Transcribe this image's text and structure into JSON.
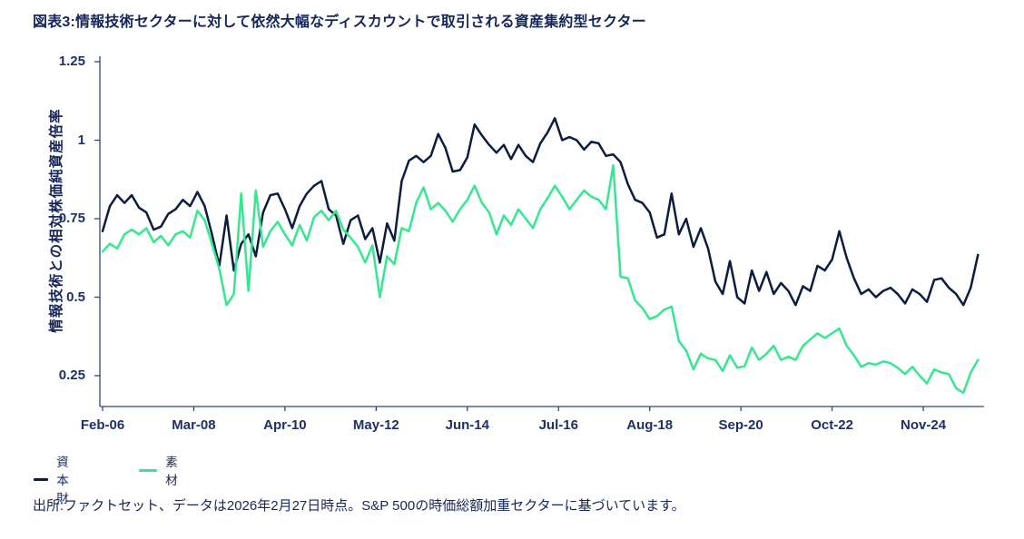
{
  "title": "図表3:情報技術セクターに対して依然大幅なディスカウントで取引される資産集約型セクター",
  "footer": "出所:ファクトセット、データは2026年2月27日時点。S&P 500の時価総額加重セクターに基づいています。",
  "colors": {
    "navy_series": "#0B1D3F",
    "green_series": "#35E88F",
    "axis_line": "#36457C",
    "text_navy": "#15265B",
    "background": "#FFFFFF"
  },
  "legend": {
    "items": [
      {
        "label": "資本財",
        "color": "#0B1D3F"
      },
      {
        "label": "素材",
        "color": "#35E88F"
      }
    ]
  },
  "chart_data": {
    "type": "line",
    "title": "図表3:情報技術セクターに対して依然大幅なディスカウントで取引される資産集約型セクター",
    "xlabel": "",
    "ylabel": "情報技術との相対株価純資産倍率",
    "ylim": [
      0.15,
      1.25
    ],
    "grid": false,
    "legend_position": "bottom-left",
    "x_unit": "months since Feb-2006, monthly data through Feb-2026",
    "yticks": {
      "values": [
        1.25,
        1.0,
        0.75,
        0.5,
        0.25
      ],
      "labels": [
        "1.25",
        "1",
        "0.75",
        "0.5",
        "0.25"
      ]
    },
    "xticks": {
      "months": [
        0,
        25,
        50,
        75,
        100,
        125,
        150,
        175,
        200,
        225
      ],
      "labels": [
        "Feb-06",
        "Mar-08",
        "Apr-10",
        "May-12",
        "Jun-14",
        "Jul-16",
        "Aug-18",
        "Sep-20",
        "Oct-22",
        "Nov-24"
      ]
    },
    "months": [
      0,
      2,
      4,
      6,
      8,
      10,
      12,
      14,
      16,
      18,
      20,
      22,
      24,
      26,
      28,
      30,
      32,
      34,
      36,
      38,
      40,
      42,
      44,
      46,
      48,
      50,
      52,
      54,
      56,
      58,
      60,
      62,
      64,
      66,
      68,
      70,
      72,
      74,
      76,
      78,
      80,
      82,
      84,
      86,
      88,
      90,
      92,
      94,
      96,
      98,
      100,
      102,
      104,
      106,
      108,
      110,
      112,
      114,
      116,
      118,
      120,
      122,
      124,
      126,
      128,
      130,
      132,
      134,
      136,
      138,
      140,
      142,
      144,
      146,
      148,
      150,
      152,
      154,
      156,
      158,
      160,
      162,
      164,
      166,
      168,
      170,
      172,
      174,
      176,
      178,
      180,
      182,
      184,
      186,
      188,
      190,
      192,
      194,
      196,
      198,
      200,
      202,
      204,
      206,
      208,
      210,
      212,
      214,
      216,
      218,
      220,
      222,
      224,
      226,
      228,
      230,
      232,
      234,
      236,
      238,
      240
    ],
    "series": [
      {
        "name": "資本財",
        "color": "#0B1D3F",
        "values": [
          0.71,
          0.79,
          0.825,
          0.8,
          0.825,
          0.785,
          0.77,
          0.715,
          0.725,
          0.765,
          0.78,
          0.81,
          0.79,
          0.835,
          0.79,
          0.7,
          0.6,
          0.76,
          0.585,
          0.67,
          0.7,
          0.63,
          0.77,
          0.825,
          0.83,
          0.78,
          0.72,
          0.79,
          0.83,
          0.855,
          0.87,
          0.78,
          0.76,
          0.67,
          0.745,
          0.76,
          0.685,
          0.72,
          0.61,
          0.735,
          0.68,
          0.87,
          0.935,
          0.95,
          0.93,
          0.95,
          1.02,
          0.975,
          0.9,
          0.905,
          0.945,
          1.05,
          1.015,
          0.985,
          0.96,
          0.985,
          0.94,
          0.985,
          0.95,
          0.93,
          0.99,
          1.025,
          1.07,
          1.0,
          1.01,
          1.0,
          0.97,
          0.995,
          0.99,
          0.95,
          0.955,
          0.93,
          0.86,
          0.81,
          0.8,
          0.77,
          0.69,
          0.7,
          0.83,
          0.7,
          0.75,
          0.66,
          0.72,
          0.655,
          0.55,
          0.51,
          0.615,
          0.5,
          0.48,
          0.585,
          0.52,
          0.58,
          0.51,
          0.545,
          0.52,
          0.475,
          0.535,
          0.52,
          0.6,
          0.585,
          0.62,
          0.71,
          0.625,
          0.56,
          0.51,
          0.525,
          0.5,
          0.52,
          0.53,
          0.51,
          0.48,
          0.525,
          0.51,
          0.485,
          0.555,
          0.56,
          0.53,
          0.51,
          0.475,
          0.53,
          0.635
        ]
      },
      {
        "name": "素材",
        "color": "#35E88F",
        "values": [
          0.645,
          0.67,
          0.655,
          0.7,
          0.715,
          0.7,
          0.72,
          0.675,
          0.695,
          0.665,
          0.7,
          0.71,
          0.69,
          0.775,
          0.745,
          0.67,
          0.59,
          0.475,
          0.51,
          0.83,
          0.52,
          0.84,
          0.66,
          0.71,
          0.74,
          0.7,
          0.665,
          0.73,
          0.68,
          0.755,
          0.775,
          0.745,
          0.775,
          0.715,
          0.69,
          0.66,
          0.61,
          0.665,
          0.5,
          0.63,
          0.605,
          0.72,
          0.71,
          0.8,
          0.85,
          0.78,
          0.8,
          0.775,
          0.74,
          0.78,
          0.81,
          0.855,
          0.8,
          0.77,
          0.7,
          0.76,
          0.73,
          0.78,
          0.75,
          0.72,
          0.78,
          0.815,
          0.855,
          0.82,
          0.78,
          0.81,
          0.84,
          0.82,
          0.81,
          0.78,
          0.92,
          0.565,
          0.56,
          0.49,
          0.465,
          0.43,
          0.44,
          0.46,
          0.47,
          0.36,
          0.33,
          0.27,
          0.32,
          0.305,
          0.3,
          0.265,
          0.315,
          0.275,
          0.28,
          0.34,
          0.3,
          0.32,
          0.345,
          0.3,
          0.31,
          0.3,
          0.345,
          0.365,
          0.385,
          0.37,
          0.385,
          0.4,
          0.345,
          0.315,
          0.278,
          0.29,
          0.285,
          0.295,
          0.29,
          0.275,
          0.255,
          0.278,
          0.25,
          0.225,
          0.27,
          0.26,
          0.255,
          0.21,
          0.195,
          0.26,
          0.3
        ]
      }
    ]
  }
}
